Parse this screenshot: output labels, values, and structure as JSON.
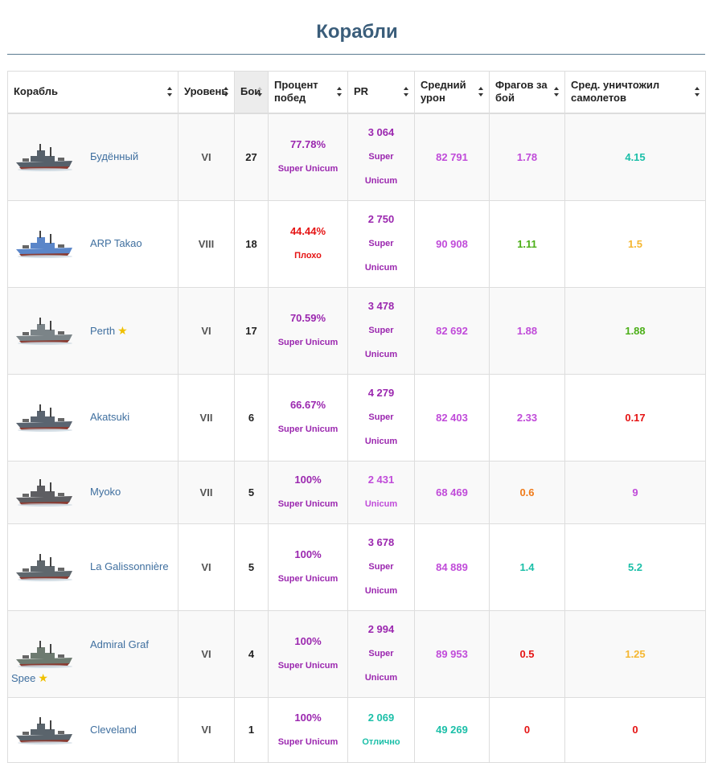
{
  "page": {
    "title": "Корабли"
  },
  "colors": {
    "super_unicum": "#9b27af",
    "unicum": "#c04bd9",
    "bad": "#e51414",
    "good": "#1bbfa8",
    "great": "#1bbfa8",
    "above_avg": "#4caf18",
    "average": "#f5b731",
    "below_avg": "#f07b1a",
    "link": "#3f6f9f"
  },
  "table": {
    "headers": {
      "ship": "Корабль",
      "tier": "Уровень",
      "battles": "Бои",
      "winrate": "Процент побед",
      "pr": "PR",
      "damage": "Средний урон",
      "frags": "Фрагов за бой",
      "planes": "Сред. уничтожил самолетов"
    },
    "rows": [
      {
        "name": "Будённый",
        "name2": "",
        "star": false,
        "tier": "VI",
        "battles": "27",
        "winrate": "77.78%",
        "winrate_label": "Super Unicum",
        "winrate_color": "#9b27af",
        "pr": "3 064",
        "pr_label": "Super Unicum",
        "pr_color": "#9b27af",
        "damage": "82 791",
        "damage_color": "#c04bd9",
        "frags": "1.78",
        "frags_color": "#c04bd9",
        "planes": "4.15",
        "planes_color": "#1bbfa8",
        "height": 107,
        "hull": "#56606a"
      },
      {
        "name": "ARP Takao",
        "name2": "",
        "star": false,
        "tier": "VIII",
        "battles": "18",
        "winrate": "44.44%",
        "winrate_label": "Плохо",
        "winrate_color": "#e51414",
        "pr": "2 750",
        "pr_label": "Super Unicum",
        "pr_color": "#9b27af",
        "damage": "90 908",
        "damage_color": "#c04bd9",
        "frags": "1.11",
        "frags_color": "#4caf18",
        "planes": "1.5",
        "planes_color": "#f5b731",
        "height": 107,
        "hull": "#5b86c9"
      },
      {
        "name": "Perth",
        "name2": "",
        "star": true,
        "tier": "VI",
        "battles": "17",
        "winrate": "70.59%",
        "winrate_label": "Super Unicum",
        "winrate_color": "#9b27af",
        "pr": "3 478",
        "pr_label": "Super Unicum",
        "pr_color": "#9b27af",
        "damage": "82 692",
        "damage_color": "#c04bd9",
        "frags": "1.88",
        "frags_color": "#c04bd9",
        "planes": "1.88",
        "planes_color": "#4caf18",
        "height": 107,
        "hull": "#7b8488"
      },
      {
        "name": "Akatsuki",
        "name2": "",
        "star": false,
        "tier": "VII",
        "battles": "6",
        "winrate": "66.67%",
        "winrate_label": "Super Unicum",
        "winrate_color": "#9b27af",
        "pr": "4 279",
        "pr_label": "Super Unicum",
        "pr_color": "#9b27af",
        "damage": "82 403",
        "damage_color": "#c04bd9",
        "frags": "2.33",
        "frags_color": "#c04bd9",
        "planes": "0.17",
        "planes_color": "#e51414",
        "height": 107,
        "hull": "#5a6470"
      },
      {
        "name": "Myoko",
        "name2": "",
        "star": false,
        "tier": "VII",
        "battles": "5",
        "winrate": "100%",
        "winrate_label": "Super Unicum",
        "winrate_color": "#9b27af",
        "pr": "2 431",
        "pr_label": "Unicum",
        "pr_color": "#c04bd9",
        "damage": "68 469",
        "damage_color": "#c04bd9",
        "frags": "0.6",
        "frags_color": "#f07b1a",
        "planes": "9",
        "planes_color": "#c04bd9",
        "height": 77,
        "hull": "#5e5e62"
      },
      {
        "name": "La Galissonnière",
        "name2": "",
        "star": false,
        "tier": "VI",
        "battles": "5",
        "winrate": "100%",
        "winrate_label": "Super Unicum",
        "winrate_color": "#9b27af",
        "pr": "3 678",
        "pr_label": "Super Unicum",
        "pr_color": "#9b27af",
        "damage": "84 889",
        "damage_color": "#c04bd9",
        "frags": "1.4",
        "frags_color": "#1bbfa8",
        "planes": "5.2",
        "planes_color": "#1bbfa8",
        "height": 107,
        "hull": "#5f676d"
      },
      {
        "name": "Admiral Graf",
        "name2": "Spee",
        "star": true,
        "tier": "VI",
        "battles": "4",
        "winrate": "100%",
        "winrate_label": "Super Unicum",
        "winrate_color": "#9b27af",
        "pr": "2 994",
        "pr_label": "Super Unicum",
        "pr_color": "#9b27af",
        "damage": "89 953",
        "damage_color": "#c04bd9",
        "frags": "0.5",
        "frags_color": "#e51414",
        "planes": "1.25",
        "planes_color": "#f5b731",
        "height": 107,
        "hull": "#6d7a70"
      },
      {
        "name": "Cleveland",
        "name2": "",
        "star": false,
        "tier": "VI",
        "battles": "1",
        "winrate": "100%",
        "winrate_label": "Super Unicum",
        "winrate_color": "#9b27af",
        "pr": "2 069",
        "pr_label": "Отлично",
        "pr_color": "#1bbfa8",
        "damage": "49 269",
        "damage_color": "#1bbfa8",
        "frags": "0",
        "frags_color": "#e51414",
        "planes": "0",
        "planes_color": "#e51414",
        "height": 80,
        "hull": "#5a646c"
      }
    ]
  }
}
